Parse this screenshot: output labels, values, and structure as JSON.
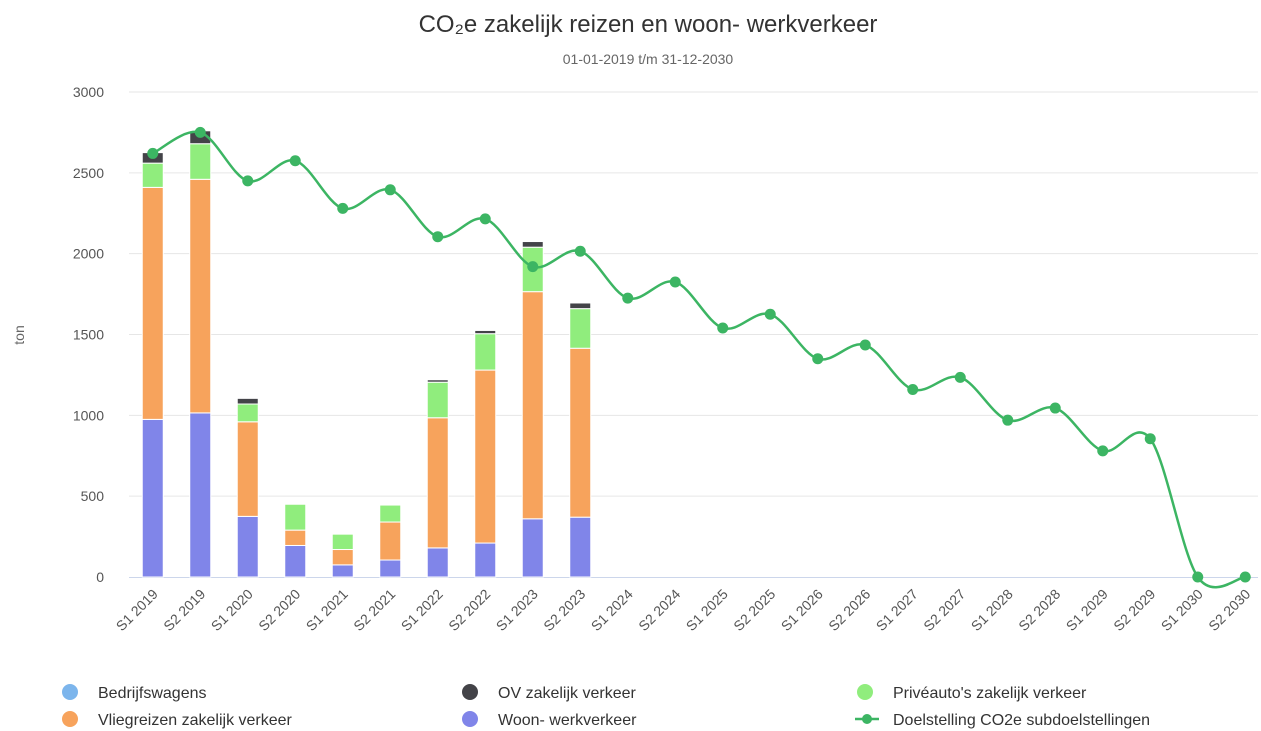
{
  "chart_data": {
    "type": "bar",
    "title": "CO₂e zakelijk reizen en woon- werkverkeer",
    "subtitle": "01-01-2019 t/m 31-12-2030",
    "y_label": "ton",
    "categories": [
      "S1 2019",
      "S2 2019",
      "S1 2020",
      "S2 2020",
      "S1 2021",
      "S2 2021",
      "S1 2022",
      "S2 2022",
      "S1 2023",
      "S2 2023",
      "S1 2024",
      "S2 2024",
      "S1 2025",
      "S2 2025",
      "S1 2026",
      "S2 2026",
      "S1 2027",
      "S2 2027",
      "S1 2028",
      "S2 2028",
      "S1 2029",
      "S2 2029",
      "S1 2030",
      "S2 2030"
    ],
    "series": [
      {
        "name": "Bedrijfswagens",
        "color": "#7cb5ec",
        "values": [
          null,
          null,
          null,
          null,
          null,
          null,
          null,
          null,
          null,
          null,
          null,
          null,
          null,
          null,
          null,
          null,
          null,
          null,
          null,
          null,
          null,
          null,
          null,
          null
        ]
      },
      {
        "name": "OV zakelijk verkeer",
        "color": "#434348",
        "values": [
          65,
          80,
          35,
          0,
          0,
          0,
          15,
          20,
          35,
          35,
          null,
          null,
          null,
          null,
          null,
          null,
          null,
          null,
          null,
          null,
          null,
          null,
          null,
          null
        ]
      },
      {
        "name": "Privéauto's zakelijk verkeer",
        "color": "#90ed7d",
        "values": [
          150,
          220,
          110,
          160,
          95,
          105,
          220,
          225,
          275,
          245,
          null,
          null,
          null,
          null,
          null,
          null,
          null,
          null,
          null,
          null,
          null,
          null,
          null,
          null
        ]
      },
      {
        "name": "Vliegreizen zakelijk verkeer",
        "color": "#f7a35c",
        "values": [
          1435,
          1445,
          585,
          95,
          95,
          235,
          805,
          1070,
          1405,
          1045,
          null,
          null,
          null,
          null,
          null,
          null,
          null,
          null,
          null,
          null,
          null,
          null,
          null,
          null
        ]
      },
      {
        "name": "Woon- werkverkeer",
        "color": "#8085e9",
        "values": [
          975,
          1015,
          375,
          195,
          75,
          105,
          180,
          210,
          360,
          370,
          null,
          null,
          null,
          null,
          null,
          null,
          null,
          null,
          null,
          null,
          null,
          null,
          null,
          null
        ]
      },
      {
        "name": "Doelstelling CO2e subdoelstellingen",
        "color": "#3cb563",
        "type": "line",
        "values": [
          2620,
          2750,
          2450,
          2575,
          2280,
          2395,
          2105,
          2215,
          1920,
          2015,
          1725,
          1825,
          1540,
          1625,
          1350,
          1435,
          1160,
          1235,
          970,
          1045,
          780,
          855,
          0,
          0
        ]
      }
    ],
    "ylim": [
      0,
      3000
    ],
    "yticks": [
      0,
      500,
      1000,
      1500,
      2000,
      2500,
      3000
    ],
    "grid": true
  }
}
